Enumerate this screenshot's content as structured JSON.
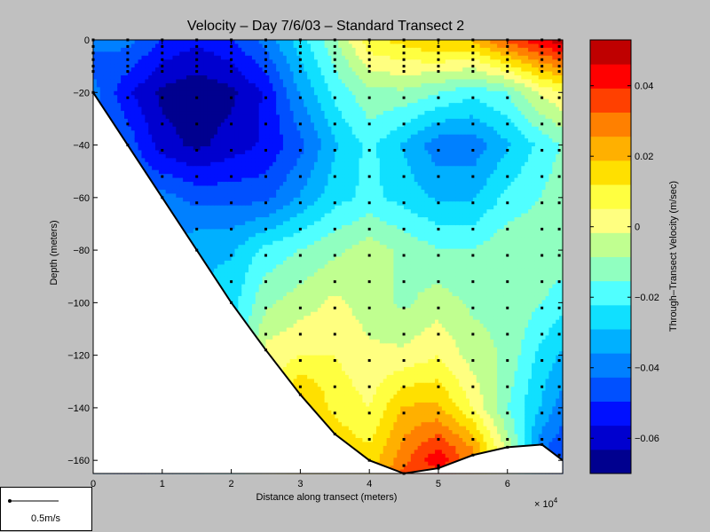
{
  "chart_data": {
    "type": "heatmap",
    "title": "Velocity – Day 7/6/03 – Standard Transect 2",
    "xlabel": "Distance along transect (meters)",
    "ylabel": "Depth (meters)",
    "x_exponent_label": "× 10",
    "x_exponent_power": "4",
    "xlim": [
      0,
      6.8
    ],
    "ylim": [
      -165,
      0
    ],
    "x_ticks": [
      "0",
      "1",
      "2",
      "3",
      "4",
      "5",
      "6"
    ],
    "y_ticks": [
      "0",
      "−20",
      "−40",
      "−60",
      "−80",
      "−100",
      "−120",
      "−140",
      "−160"
    ],
    "colorbar": {
      "label": "Through–Transect Velocity (m/sec)",
      "range": [
        -0.07,
        0.053
      ],
      "ticks": [
        "0.04",
        "0.02",
        "0",
        "−0.02",
        "−0.04",
        "−0.06"
      ],
      "colors": [
        "#00008f",
        "#0000cf",
        "#0010ff",
        "#0050ff",
        "#0080ff",
        "#00b0ff",
        "#10e0ff",
        "#50ffff",
        "#90ffc0",
        "#c0ff90",
        "#ffff80",
        "#ffff40",
        "#ffe000",
        "#ffb000",
        "#ff8000",
        "#ff4000",
        "#ff0000",
        "#bf0000"
      ]
    },
    "bottom_profile": [
      [
        0,
        -20
      ],
      [
        0.5,
        -40
      ],
      [
        1,
        -60
      ],
      [
        1.5,
        -80
      ],
      [
        2,
        -100
      ],
      [
        2.5,
        -118
      ],
      [
        3,
        -135
      ],
      [
        3.5,
        -150
      ],
      [
        4,
        -160
      ],
      [
        4.5,
        -165
      ],
      [
        5,
        -163
      ],
      [
        5.5,
        -158
      ],
      [
        6,
        -155
      ],
      [
        6.5,
        -154
      ],
      [
        6.8,
        -160
      ]
    ],
    "velocity_field": [
      {
        "x": 0.0,
        "profile": [
          [
            0,
            -0.04
          ],
          [
            -10,
            -0.045
          ],
          [
            -20,
            -0.04
          ]
        ]
      },
      {
        "x": 0.5,
        "profile": [
          [
            0,
            -0.04
          ],
          [
            -20,
            -0.055
          ],
          [
            -40,
            -0.045
          ]
        ]
      },
      {
        "x": 1.0,
        "profile": [
          [
            0,
            -0.05
          ],
          [
            -20,
            -0.065
          ],
          [
            -40,
            -0.06
          ],
          [
            -60,
            -0.04
          ]
        ]
      },
      {
        "x": 1.5,
        "profile": [
          [
            0,
            -0.055
          ],
          [
            -20,
            -0.068
          ],
          [
            -40,
            -0.065
          ],
          [
            -60,
            -0.045
          ],
          [
            -80,
            -0.03
          ]
        ]
      },
      {
        "x": 2.0,
        "profile": [
          [
            0,
            -0.05
          ],
          [
            -20,
            -0.065
          ],
          [
            -40,
            -0.06
          ],
          [
            -60,
            -0.045
          ],
          [
            -80,
            -0.03
          ],
          [
            -100,
            -0.025
          ]
        ]
      },
      {
        "x": 2.5,
        "profile": [
          [
            0,
            -0.04
          ],
          [
            -20,
            -0.055
          ],
          [
            -40,
            -0.055
          ],
          [
            -60,
            -0.045
          ],
          [
            -80,
            -0.02
          ],
          [
            -100,
            -0.01
          ],
          [
            -118,
            0.0
          ]
        ]
      },
      {
        "x": 3.0,
        "profile": [
          [
            0,
            -0.025
          ],
          [
            -20,
            -0.035
          ],
          [
            -40,
            -0.045
          ],
          [
            -60,
            -0.035
          ],
          [
            -80,
            -0.015
          ],
          [
            -100,
            -0.005
          ],
          [
            -120,
            0.005
          ],
          [
            -135,
            0.02
          ]
        ]
      },
      {
        "x": 3.5,
        "profile": [
          [
            0,
            -0.01
          ],
          [
            -20,
            -0.02
          ],
          [
            -40,
            -0.03
          ],
          [
            -60,
            -0.025
          ],
          [
            -80,
            -0.01
          ],
          [
            -100,
            0.0
          ],
          [
            -120,
            0.005
          ],
          [
            -140,
            0.01
          ],
          [
            -150,
            0.015
          ]
        ]
      },
      {
        "x": 4.0,
        "profile": [
          [
            0,
            0.01
          ],
          [
            -20,
            -0.01
          ],
          [
            -40,
            -0.02
          ],
          [
            -60,
            -0.02
          ],
          [
            -80,
            -0.005
          ],
          [
            -100,
            -0.005
          ],
          [
            -120,
            0.0
          ],
          [
            -140,
            0.005
          ],
          [
            -160,
            0.015
          ]
        ]
      },
      {
        "x": 4.5,
        "profile": [
          [
            0,
            0.015
          ],
          [
            -20,
            -0.01
          ],
          [
            -40,
            -0.03
          ],
          [
            -60,
            -0.025
          ],
          [
            -80,
            -0.01
          ],
          [
            -100,
            -0.01
          ],
          [
            -120,
            0.0
          ],
          [
            -140,
            0.02
          ],
          [
            -160,
            0.03
          ],
          [
            -165,
            0.035
          ]
        ]
      },
      {
        "x": 5.0,
        "profile": [
          [
            0,
            0.02
          ],
          [
            -20,
            -0.015
          ],
          [
            -40,
            -0.04
          ],
          [
            -60,
            -0.03
          ],
          [
            -80,
            -0.015
          ],
          [
            -100,
            -0.005
          ],
          [
            -120,
            0.005
          ],
          [
            -140,
            0.02
          ],
          [
            -160,
            0.045
          ],
          [
            -163,
            0.04
          ]
        ]
      },
      {
        "x": 5.5,
        "profile": [
          [
            0,
            0.02
          ],
          [
            -20,
            -0.02
          ],
          [
            -40,
            -0.04
          ],
          [
            -60,
            -0.03
          ],
          [
            -80,
            -0.015
          ],
          [
            -100,
            -0.01
          ],
          [
            -120,
            -0.005
          ],
          [
            -140,
            0.005
          ],
          [
            -155,
            0.025
          ]
        ]
      },
      {
        "x": 6.0,
        "profile": [
          [
            0,
            0.035
          ],
          [
            -20,
            -0.015
          ],
          [
            -40,
            -0.03
          ],
          [
            -60,
            -0.02
          ],
          [
            -80,
            -0.01
          ],
          [
            -100,
            -0.01
          ],
          [
            -120,
            -0.01
          ],
          [
            -140,
            -0.015
          ],
          [
            -155,
            -0.005
          ]
        ]
      },
      {
        "x": 6.5,
        "profile": [
          [
            0,
            0.045
          ],
          [
            -20,
            0.0
          ],
          [
            -40,
            -0.02
          ],
          [
            -60,
            -0.015
          ],
          [
            -80,
            -0.01
          ],
          [
            -100,
            -0.015
          ],
          [
            -120,
            -0.025
          ],
          [
            -140,
            -0.03
          ],
          [
            -154,
            -0.04
          ]
        ]
      },
      {
        "x": 6.8,
        "profile": [
          [
            0,
            0.05
          ],
          [
            -20,
            0.005
          ],
          [
            -40,
            -0.015
          ],
          [
            -60,
            -0.01
          ],
          [
            -80,
            -0.01
          ],
          [
            -100,
            -0.02
          ],
          [
            -120,
            -0.03
          ],
          [
            -140,
            -0.04
          ],
          [
            -160,
            -0.05
          ]
        ]
      }
    ],
    "sample_columns": [
      {
        "x": 0.0,
        "z_max": -20
      },
      {
        "x": 0.5,
        "z_max": -40
      },
      {
        "x": 1.0,
        "z_max": -60
      },
      {
        "x": 1.5,
        "z_max": -80
      },
      {
        "x": 2.0,
        "z_max": -100
      },
      {
        "x": 2.5,
        "z_max": -118
      },
      {
        "x": 3.0,
        "z_max": -135
      },
      {
        "x": 3.5,
        "z_max": -150
      },
      {
        "x": 4.0,
        "z_max": -160
      },
      {
        "x": 4.5,
        "z_max": -165
      },
      {
        "x": 5.0,
        "z_max": -163
      },
      {
        "x": 5.5,
        "z_max": -158
      },
      {
        "x": 6.0,
        "z_max": -155
      },
      {
        "x": 6.5,
        "z_max": -154
      },
      {
        "x": 6.75,
        "z_max": -158
      }
    ],
    "sample_depth_step": 10,
    "grid": false
  },
  "scale_legend": {
    "label": "0.5m/s"
  }
}
